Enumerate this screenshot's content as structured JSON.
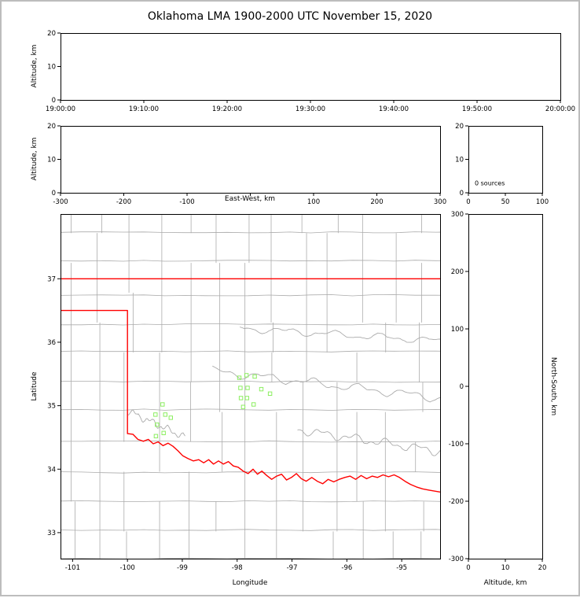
{
  "title": "Oklahoma LMA 1900-2000 UTC November 15, 2020",
  "colors": {
    "axis": "#000000",
    "outer_border": "#bdbdbd",
    "background": "#ffffff"
  },
  "chart_data": [
    {
      "id": "altitude-vs-time",
      "type": "scatter",
      "xlabel": "",
      "ylabel": "Altitude, km",
      "xtick_labels": [
        "19:00:00",
        "19:10:00",
        "19:20:00",
        "19:30:00",
        "19:40:00",
        "19:50:00",
        "20:00:00"
      ],
      "yticks": [
        0,
        10,
        20
      ],
      "ylim": [
        0,
        20
      ],
      "legend": "none",
      "grid": false,
      "points": []
    },
    {
      "id": "altitude-vs-east-west",
      "type": "scatter",
      "xlabel": "East-West, km",
      "ylabel": "Altitude, km",
      "xticks": [
        -300,
        -200,
        -100,
        0,
        100,
        200,
        300
      ],
      "xtick_labels_omitted": [
        0
      ],
      "xlim": [
        -300,
        300
      ],
      "yticks": [
        0,
        10,
        20
      ],
      "ylim": [
        0,
        20
      ],
      "grid": false,
      "points": []
    },
    {
      "id": "source-count-histogram",
      "type": "histogram",
      "annotation": "0 sources",
      "xticks": [
        0,
        50,
        100
      ],
      "xlim": [
        0,
        100
      ],
      "yticks": [
        0,
        10,
        20
      ],
      "ylim": [
        0,
        20
      ],
      "grid": false,
      "values": []
    },
    {
      "id": "plan-view-map",
      "type": "scatter",
      "xlabel": "Longitude",
      "ylabel": "Latitude",
      "xticks": [
        -101,
        -100,
        -99,
        -98,
        -97,
        -96,
        -95
      ],
      "xlim": [
        -101.22,
        -94.3
      ],
      "yticks": [
        33,
        34,
        35,
        36,
        37
      ],
      "ylim": [
        32.59,
        38.02
      ],
      "grid": false,
      "marker": "open-square",
      "marker_color": "#8cee60",
      "county_line_color": "#ababab",
      "state_border_color": "#ff0000",
      "sources": [
        [
          -99.36,
          35.02
        ],
        [
          -99.49,
          34.86
        ],
        [
          -99.31,
          34.86
        ],
        [
          -99.21,
          34.81
        ],
        [
          -99.46,
          34.7
        ],
        [
          -99.34,
          34.57
        ],
        [
          -99.48,
          34.52
        ],
        [
          -97.96,
          35.44
        ],
        [
          -97.83,
          35.48
        ],
        [
          -97.68,
          35.46
        ],
        [
          -97.94,
          35.28
        ],
        [
          -97.81,
          35.28
        ],
        [
          -97.56,
          35.26
        ],
        [
          -97.4,
          35.19
        ],
        [
          -97.93,
          35.12
        ],
        [
          -97.82,
          35.12
        ],
        [
          -97.7,
          35.02
        ],
        [
          -97.89,
          34.98
        ]
      ],
      "state_border": [
        [
          [
            -101.22,
            37.0
          ],
          [
            -94.3,
            37.0
          ]
        ],
        [
          [
            -101.22,
            36.5
          ],
          [
            -100.0,
            36.5
          ],
          [
            -100.0,
            34.56
          ],
          [
            -99.9,
            34.55
          ],
          [
            -99.81,
            34.47
          ],
          [
            -99.71,
            34.44
          ],
          [
            -99.62,
            34.47
          ],
          [
            -99.53,
            34.4
          ],
          [
            -99.44,
            34.43
          ],
          [
            -99.35,
            34.37
          ],
          [
            -99.26,
            34.41
          ],
          [
            -99.17,
            34.36
          ],
          [
            -99.08,
            34.29
          ],
          [
            -98.99,
            34.21
          ],
          [
            -98.9,
            34.17
          ],
          [
            -98.8,
            34.13
          ],
          [
            -98.7,
            34.15
          ],
          [
            -98.61,
            34.1
          ],
          [
            -98.52,
            34.15
          ],
          [
            -98.43,
            34.08
          ],
          [
            -98.34,
            34.13
          ],
          [
            -98.25,
            34.08
          ],
          [
            -98.16,
            34.12
          ],
          [
            -98.07,
            34.05
          ],
          [
            -97.98,
            34.03
          ],
          [
            -97.89,
            33.97
          ],
          [
            -97.8,
            33.93
          ],
          [
            -97.71,
            34.0
          ],
          [
            -97.63,
            33.92
          ],
          [
            -97.55,
            33.97
          ],
          [
            -97.46,
            33.9
          ],
          [
            -97.37,
            33.84
          ],
          [
            -97.28,
            33.89
          ],
          [
            -97.19,
            33.92
          ],
          [
            -97.1,
            33.83
          ],
          [
            -97.01,
            33.87
          ],
          [
            -96.92,
            33.93
          ],
          [
            -96.83,
            33.85
          ],
          [
            -96.74,
            33.81
          ],
          [
            -96.64,
            33.87
          ],
          [
            -96.54,
            33.81
          ],
          [
            -96.44,
            33.77
          ],
          [
            -96.34,
            33.84
          ],
          [
            -96.24,
            33.8
          ],
          [
            -96.14,
            33.84
          ],
          [
            -96.04,
            33.87
          ],
          [
            -95.94,
            33.89
          ],
          [
            -95.84,
            33.84
          ],
          [
            -95.74,
            33.9
          ],
          [
            -95.64,
            33.85
          ],
          [
            -95.54,
            33.89
          ],
          [
            -95.44,
            33.87
          ],
          [
            -95.34,
            33.91
          ],
          [
            -95.24,
            33.88
          ],
          [
            -95.14,
            33.91
          ],
          [
            -95.04,
            33.87
          ],
          [
            -94.94,
            33.81
          ],
          [
            -94.84,
            33.76
          ],
          [
            -94.73,
            33.72
          ],
          [
            -94.62,
            33.69
          ],
          [
            -94.5,
            33.67
          ],
          [
            -94.3,
            33.64
          ]
        ]
      ]
    },
    {
      "id": "altitude-vs-north-south",
      "type": "scatter",
      "xlabel": "Altitude, km",
      "ylabel": "North-South, km",
      "xticks": [
        0,
        10,
        20
      ],
      "xlim": [
        0,
        20
      ],
      "yticks": [
        -300,
        -200,
        -100,
        0,
        100,
        200,
        300
      ],
      "ylim": [
        -300,
        300
      ],
      "grid": false,
      "points": []
    }
  ]
}
